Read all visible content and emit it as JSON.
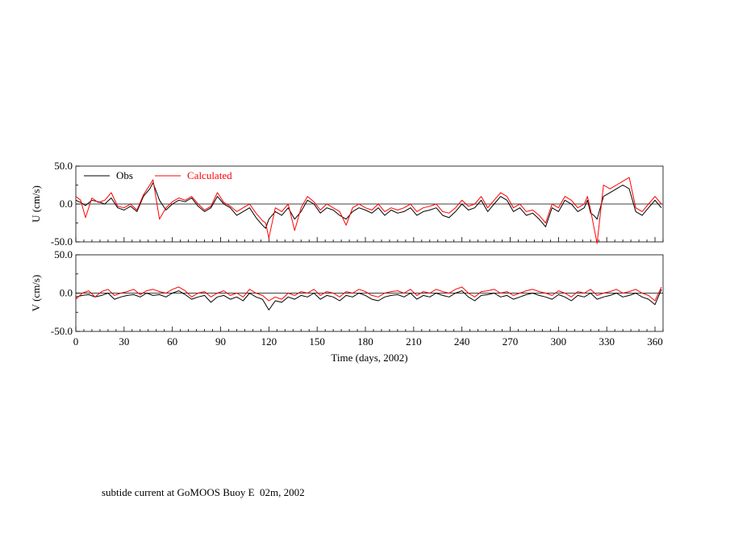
{
  "caption": "subtide current at GoMOOS Buoy E  02m, 2002",
  "chart_data": [
    {
      "type": "line",
      "ylabel": "U (cm/s)",
      "xlabel": "",
      "ylim": [
        -50,
        50
      ],
      "xlim": [
        0,
        365
      ],
      "yticks": [
        "50.0",
        "0.0",
        "-50.0"
      ],
      "zero_line": true,
      "legend": {
        "placement": "top-left"
      },
      "series": [
        {
          "name": "Obs",
          "color": "#000000",
          "x": [
            0,
            3,
            6,
            10,
            14,
            18,
            22,
            26,
            30,
            34,
            38,
            42,
            46,
            48,
            52,
            56,
            60,
            64,
            68,
            72,
            76,
            80,
            84,
            88,
            92,
            96,
            100,
            104,
            108,
            112,
            116,
            118,
            120,
            124,
            128,
            132,
            136,
            140,
            144,
            148,
            152,
            156,
            160,
            164,
            168,
            172,
            176,
            180,
            184,
            188,
            192,
            196,
            200,
            204,
            208,
            212,
            216,
            220,
            224,
            228,
            232,
            236,
            240,
            244,
            248,
            252,
            256,
            260,
            264,
            268,
            272,
            276,
            280,
            284,
            288,
            292,
            296,
            300,
            304,
            308,
            312,
            316,
            318,
            320,
            322,
            324,
            328,
            332,
            336,
            340,
            344,
            348,
            352,
            356,
            360,
            364
          ],
          "values": [
            5,
            2,
            -2,
            5,
            3,
            0,
            8,
            -5,
            -8,
            -3,
            -10,
            10,
            20,
            28,
            5,
            -8,
            0,
            5,
            3,
            8,
            -3,
            -10,
            -5,
            10,
            0,
            -5,
            -15,
            -10,
            -5,
            -18,
            -28,
            -32,
            -20,
            -10,
            -15,
            -5,
            -20,
            -10,
            5,
            0,
            -12,
            -5,
            -8,
            -15,
            -20,
            -10,
            -5,
            -8,
            -12,
            -5,
            -15,
            -8,
            -12,
            -10,
            -5,
            -15,
            -10,
            -8,
            -5,
            -15,
            -18,
            -10,
            0,
            -8,
            -5,
            5,
            -10,
            0,
            10,
            5,
            -10,
            -5,
            -15,
            -12,
            -20,
            -30,
            -5,
            -10,
            5,
            0,
            -10,
            -5,
            5,
            -12,
            -15,
            -20,
            10,
            15,
            20,
            25,
            20,
            -10,
            -15,
            -5,
            5,
            -5
          ]
        },
        {
          "name": "Calculated",
          "color": "#ff0000",
          "x": [
            0,
            3,
            6,
            10,
            14,
            18,
            22,
            26,
            30,
            34,
            38,
            42,
            46,
            48,
            52,
            56,
            60,
            64,
            68,
            72,
            76,
            80,
            84,
            88,
            92,
            96,
            100,
            104,
            108,
            112,
            116,
            118,
            120,
            124,
            128,
            132,
            136,
            140,
            144,
            148,
            152,
            156,
            160,
            164,
            168,
            172,
            176,
            180,
            184,
            188,
            192,
            196,
            200,
            204,
            208,
            212,
            216,
            220,
            224,
            228,
            232,
            236,
            240,
            244,
            248,
            252,
            256,
            260,
            264,
            268,
            272,
            276,
            280,
            284,
            288,
            292,
            296,
            300,
            304,
            308,
            312,
            316,
            318,
            320,
            322,
            324,
            328,
            332,
            336,
            340,
            344,
            348,
            352,
            356,
            360,
            364
          ],
          "values": [
            10,
            5,
            -18,
            8,
            2,
            5,
            15,
            -3,
            -5,
            0,
            -8,
            12,
            25,
            32,
            -20,
            -5,
            3,
            8,
            5,
            10,
            0,
            -8,
            -3,
            15,
            2,
            -3,
            -10,
            -5,
            0,
            -12,
            -22,
            -25,
            -45,
            -5,
            -10,
            0,
            -35,
            -5,
            10,
            3,
            -8,
            0,
            -5,
            -10,
            -28,
            -5,
            0,
            -5,
            -8,
            0,
            -10,
            -5,
            -8,
            -5,
            0,
            -10,
            -5,
            -3,
            0,
            -10,
            -12,
            -5,
            5,
            -3,
            0,
            10,
            -5,
            5,
            15,
            10,
            -5,
            0,
            -10,
            -8,
            -15,
            -25,
            0,
            -5,
            10,
            5,
            -5,
            0,
            10,
            -8,
            -30,
            -52,
            25,
            20,
            25,
            30,
            35,
            -5,
            -10,
            0,
            10,
            0
          ]
        }
      ]
    },
    {
      "type": "line",
      "ylabel": "V (cm/s)",
      "xlabel": "Time (days, 2002)",
      "ylim": [
        -50,
        50
      ],
      "xlim": [
        0,
        365
      ],
      "yticks": [
        "50.0",
        "0.0",
        "-50.0"
      ],
      "xticks": [
        "0",
        "30",
        "60",
        "90",
        "120",
        "150",
        "180",
        "210",
        "240",
        "270",
        "300",
        "330",
        "360"
      ],
      "zero_line": true,
      "series": [
        {
          "name": "Obs",
          "color": "#000000",
          "x": [
            0,
            4,
            8,
            12,
            16,
            20,
            24,
            28,
            32,
            36,
            40,
            44,
            48,
            52,
            56,
            60,
            64,
            68,
            72,
            76,
            80,
            84,
            88,
            92,
            96,
            100,
            104,
            108,
            112,
            116,
            120,
            124,
            128,
            132,
            136,
            140,
            144,
            148,
            152,
            156,
            160,
            164,
            168,
            172,
            176,
            180,
            184,
            188,
            192,
            196,
            200,
            204,
            208,
            212,
            216,
            220,
            224,
            228,
            232,
            236,
            240,
            244,
            248,
            252,
            256,
            260,
            264,
            268,
            272,
            276,
            280,
            284,
            288,
            292,
            296,
            300,
            304,
            308,
            312,
            316,
            320,
            324,
            328,
            332,
            336,
            340,
            344,
            348,
            352,
            356,
            360,
            364
          ],
          "values": [
            -5,
            -3,
            -2,
            -5,
            -3,
            0,
            -8,
            -5,
            -3,
            -2,
            -5,
            0,
            -3,
            -2,
            -5,
            0,
            3,
            -2,
            -8,
            -5,
            -3,
            -12,
            -5,
            -3,
            -8,
            -5,
            -10,
            0,
            -5,
            -8,
            -22,
            -10,
            -12,
            -5,
            -8,
            -3,
            -5,
            0,
            -8,
            -3,
            -5,
            -10,
            -3,
            -5,
            0,
            -3,
            -8,
            -10,
            -5,
            -3,
            -2,
            -5,
            0,
            -8,
            -3,
            -5,
            0,
            -3,
            -5,
            0,
            3,
            -5,
            -10,
            -3,
            -2,
            0,
            -5,
            -3,
            -8,
            -5,
            -2,
            0,
            -3,
            -5,
            -8,
            -2,
            -5,
            -10,
            -3,
            -5,
            0,
            -8,
            -5,
            -3,
            0,
            -5,
            -3,
            0,
            -5,
            -8,
            -15,
            5
          ]
        },
        {
          "name": "Calculated",
          "color": "#ff0000",
          "x": [
            0,
            4,
            8,
            12,
            16,
            20,
            24,
            28,
            32,
            36,
            40,
            44,
            48,
            52,
            56,
            60,
            64,
            68,
            72,
            76,
            80,
            84,
            88,
            92,
            96,
            100,
            104,
            108,
            112,
            116,
            120,
            124,
            128,
            132,
            136,
            140,
            144,
            148,
            152,
            156,
            160,
            164,
            168,
            172,
            176,
            180,
            184,
            188,
            192,
            196,
            200,
            204,
            208,
            212,
            216,
            220,
            224,
            228,
            232,
            236,
            240,
            244,
            248,
            252,
            256,
            260,
            264,
            268,
            272,
            276,
            280,
            284,
            288,
            292,
            296,
            300,
            304,
            308,
            312,
            316,
            320,
            324,
            328,
            332,
            336,
            340,
            344,
            348,
            352,
            356,
            360,
            364
          ],
          "values": [
            -8,
            0,
            3,
            -5,
            2,
            5,
            -3,
            0,
            2,
            5,
            -2,
            3,
            5,
            2,
            0,
            5,
            8,
            3,
            -5,
            0,
            2,
            -5,
            0,
            3,
            -3,
            0,
            -5,
            5,
            0,
            -3,
            -10,
            -5,
            -8,
            0,
            -3,
            2,
            0,
            5,
            -3,
            2,
            0,
            -5,
            2,
            0,
            5,
            2,
            -3,
            -5,
            0,
            2,
            3,
            0,
            5,
            -3,
            2,
            0,
            5,
            2,
            0,
            5,
            8,
            0,
            -5,
            2,
            3,
            5,
            0,
            2,
            -3,
            0,
            3,
            5,
            2,
            0,
            -3,
            3,
            0,
            -5,
            2,
            0,
            5,
            -3,
            0,
            2,
            5,
            0,
            2,
            5,
            0,
            -3,
            -10,
            8
          ]
        }
      ]
    }
  ]
}
